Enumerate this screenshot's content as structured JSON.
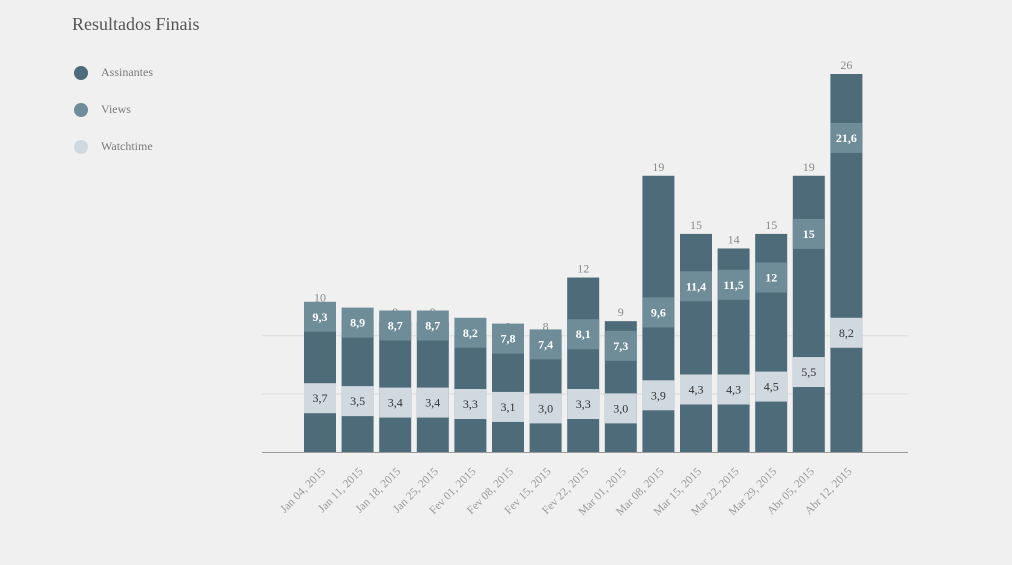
{
  "title": "Resultados Finais",
  "legend": [
    {
      "label": "Assinantes",
      "color": "#4e6b79"
    },
    {
      "label": "Views",
      "color": "#6f8d99"
    },
    {
      "label": "Watchtime",
      "color": "#d0d9df"
    }
  ],
  "chart_data": {
    "type": "bar",
    "title": "Resultados Finais",
    "categories": [
      "Jan 04, 2015",
      "Jan 11, 2015",
      "Jan 18, 2015",
      "Jan 25, 2015",
      "Fev 01, 2015",
      "Fev 08, 2015",
      "Fev 15, 2015",
      "Fev 22, 2015",
      "Mar 01, 2015",
      "Mar 08, 2015",
      "Mar 15, 2015",
      "Mar 22, 2015",
      "Mar 29, 2015",
      "Abr 05, 2015",
      "Abr 12, 2015"
    ],
    "series": [
      {
        "name": "Assinantes",
        "values": [
          10,
          9,
          9,
          9,
          8,
          8,
          8,
          12,
          9,
          19,
          15,
          14,
          15,
          19,
          26
        ],
        "labels": [
          "10",
          "9",
          "9",
          "9",
          "8",
          "8",
          "8",
          "12",
          "9",
          "19",
          "15",
          "14",
          "15",
          "19",
          "26"
        ]
      },
      {
        "name": "Views",
        "values": [
          9.3,
          8.9,
          8.7,
          8.7,
          8.2,
          7.8,
          7.4,
          8.1,
          7.3,
          9.6,
          11.4,
          11.5,
          12,
          15,
          21.6
        ],
        "labels": [
          "9,3",
          "8,9",
          "8,7",
          "8,7",
          "8,2",
          "7,8",
          "7,4",
          "8,1",
          "7,3",
          "9,6",
          "11,4",
          "11,5",
          "12",
          "15",
          "21,6"
        ]
      },
      {
        "name": "Watchtime",
        "values": [
          3.7,
          3.5,
          3.4,
          3.4,
          3.3,
          3.1,
          3.0,
          3.3,
          3.0,
          3.9,
          4.3,
          4.3,
          4.5,
          5.5,
          8.2
        ],
        "labels": [
          "3,7",
          "3,5",
          "3,4",
          "3,4",
          "3,3",
          "3,1",
          "3,0",
          "3,3",
          "3,0",
          "3,9",
          "4,3",
          "4,3",
          "4,5",
          "5,5",
          "8,2"
        ]
      }
    ],
    "ylim": [
      0,
      26
    ],
    "grid": true,
    "legend_position": "top-left"
  }
}
